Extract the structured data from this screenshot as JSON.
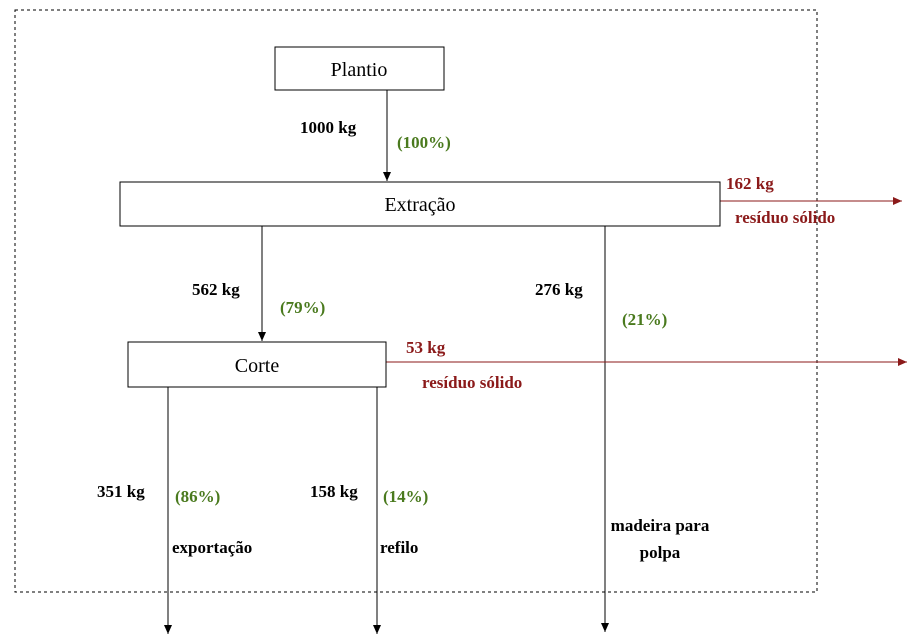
{
  "nodes": [
    {
      "label": "Plantio"
    },
    {
      "label": "Extração"
    },
    {
      "label": "Corte"
    }
  ],
  "flows": [
    {
      "amount": "1000 kg",
      "percent": "(100%)"
    },
    {
      "amount": "162 kg",
      "destination": "resíduo sólido"
    },
    {
      "amount": "562 kg",
      "percent": "(79%)"
    },
    {
      "amount": "276 kg",
      "percent": "(21%)",
      "destination": "madeira para polpa"
    },
    {
      "amount": "53 kg",
      "destination": "resíduo sólido"
    },
    {
      "amount": "351 kg",
      "percent": "(86%)",
      "destination": "exportação"
    },
    {
      "amount": "158 kg",
      "percent": "(14%)",
      "destination": "refilo"
    }
  ]
}
